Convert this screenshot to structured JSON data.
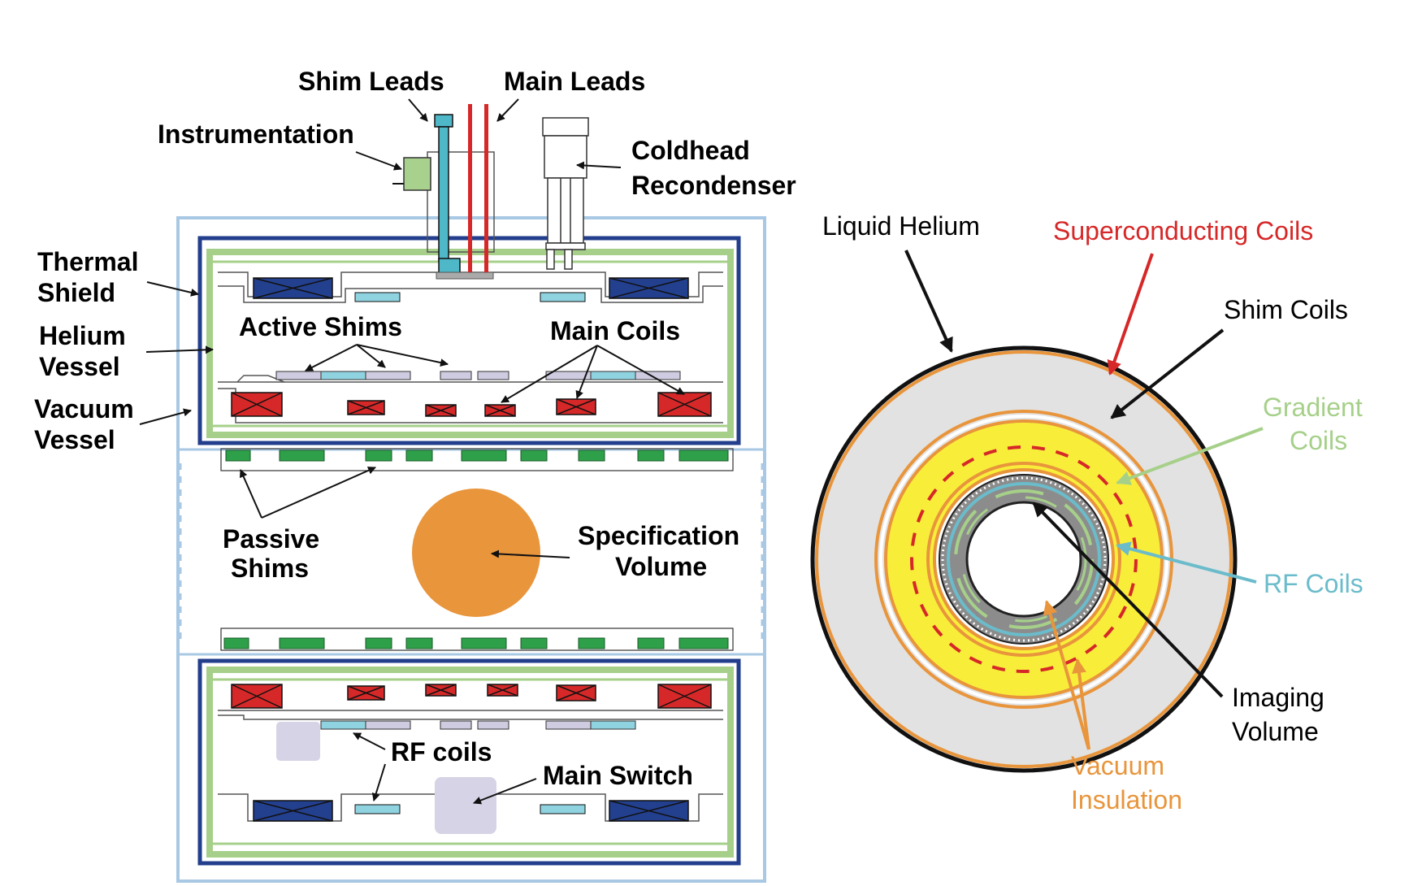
{
  "colors": {
    "outer_frame": "#a8c8e4",
    "vacuum_vessel": "#223e8c",
    "helium_vessel": "#a6d08a",
    "main_coil_red": "#d62828",
    "shim_coil_blue": "#23408f",
    "active_shim_cyan": "#8fd3e0",
    "active_shim_lilac": "#cfcbe0",
    "passive_shim_green": "#2fa04a",
    "spec_volume_orange": "#e8953c",
    "instrumentation_green": "#a9d18e",
    "main_lead_red": "#d62828",
    "shim_lead_teal": "#4fb8c8",
    "switch_lilac": "#d7d3e6",
    "liquid_helium_gray": "#e2e2e2",
    "coil_yellow": "#f8ee3a",
    "vacuum_orange": "#e8953c",
    "inner_dark_gray": "#8c8c8c",
    "superconducting_label": "#d62828",
    "gradient_label": "#a6d08a",
    "rf_label": "#6bbccb",
    "vacuum_label": "#e8953c"
  },
  "left_labels": {
    "shim_leads": "Shim Leads",
    "main_leads": "Main Leads",
    "instrumentation": "Instrumentation",
    "coldhead_line1": "Coldhead",
    "coldhead_line2": "Recondenser",
    "thermal_shield_line1": "Thermal",
    "thermal_shield_line2": "Shield",
    "helium_vessel_line1": "Helium",
    "helium_vessel_line2": "Vessel",
    "vacuum_vessel_line1": "Vacuum",
    "vacuum_vessel_line2": "Vessel",
    "active_shims": "Active Shims",
    "main_coils": "Main Coils",
    "passive_shims_line1": "Passive",
    "passive_shims_line2": "Shims",
    "spec_volume_line1": "Specification",
    "spec_volume_line2": "Volume",
    "rf_coils": "RF coils",
    "main_switch": "Main Switch"
  },
  "right_labels": {
    "liquid_helium": "Liquid Helium",
    "superconducting_coils": "Superconducting  Coils",
    "shim_coils": "Shim Coils",
    "gradient_line1": "Gradient",
    "gradient_line2": "Coils",
    "rf_coils": "RF Coils",
    "imaging_line1": "Imaging",
    "imaging_line2": "Volume",
    "vacuum_line1": "Vacuum",
    "vacuum_line2": "Insulation"
  }
}
